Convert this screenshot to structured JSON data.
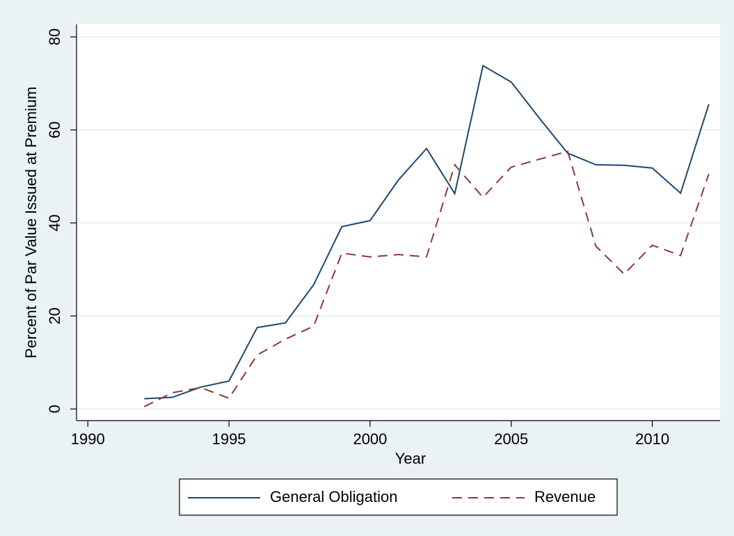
{
  "chart_data": {
    "type": "line",
    "x_label": "Year",
    "y_label": "Percent of Par Value Issued at Premium",
    "x": [
      1992,
      1993,
      1994,
      1995,
      1996,
      1997,
      1998,
      1999,
      2000,
      2001,
      2002,
      2003,
      2004,
      2005,
      2006,
      2007,
      2008,
      2009,
      2010,
      2011,
      2012
    ],
    "series": [
      {
        "name": "General Obligation",
        "color": "#1a476f",
        "dash": "solid",
        "values": [
          2.2,
          2.5,
          4.7,
          6.0,
          17.5,
          18.5,
          26.7,
          39.2,
          40.5,
          49.2,
          56.0,
          46.3,
          73.8,
          70.3,
          62.5,
          55.0,
          52.5,
          52.4,
          51.8,
          46.4,
          65.5
        ]
      },
      {
        "name": "Revenue",
        "color": "#90353b",
        "dash": "dashed",
        "values": [
          0.5,
          3.5,
          4.6,
          2.3,
          11.6,
          15.0,
          17.8,
          33.5,
          32.7,
          33.2,
          32.7,
          52.5,
          45.5,
          52.0,
          53.7,
          55.4,
          35.0,
          29.0,
          35.2,
          33.0,
          50.5
        ]
      }
    ],
    "xlim": [
      1989.6,
      2012.4
    ],
    "xticks": [
      1990,
      1995,
      2000,
      2005,
      2010
    ],
    "ylim": [
      -2.5,
      82.7
    ],
    "yticks": [
      0,
      20,
      40,
      60,
      80
    ],
    "grid": true,
    "legend_position": "bottom"
  }
}
